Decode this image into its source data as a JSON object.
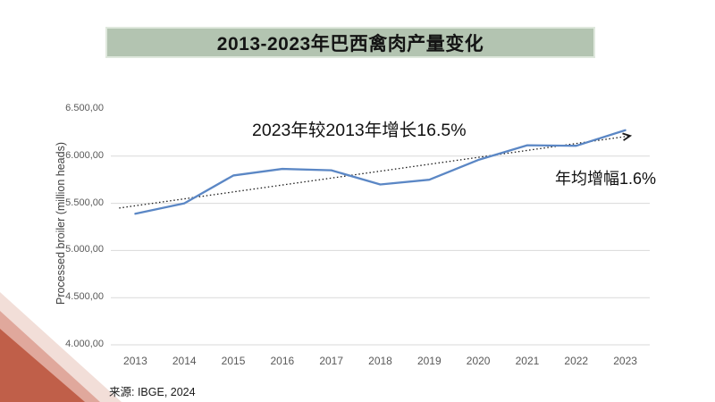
{
  "title": {
    "text": "2013-2023年巴西禽肉产量变化"
  },
  "annotations": {
    "growth_total": "2023年较2013年增长16.5%",
    "growth_annual": "年均增幅1.6%"
  },
  "source": {
    "text": "来源: IBGE, 2024"
  },
  "colors": {
    "banner_bg": "#b3c4b1",
    "banner_border": "#dfe8dd",
    "series_line": "#5b87c5",
    "trendline": "#1a1a1a",
    "gridline": "#d9d9d9",
    "tick_text": "#595959",
    "axis_label_text": "#404040",
    "corner_triangles": [
      "#f2ded8",
      "#e0a89c",
      "#c05f49"
    ]
  },
  "chart_data": {
    "type": "line",
    "title": "2013-2023年巴西禽肉产量变化",
    "categories": [
      "2013",
      "2014",
      "2015",
      "2016",
      "2017",
      "2018",
      "2019",
      "2020",
      "2021",
      "2022",
      "2023"
    ],
    "series": [
      {
        "name": "Processed broiler (million heads)",
        "values": [
          5390,
          5500,
          5795,
          5865,
          5850,
          5700,
          5750,
          5960,
          6115,
          6110,
          6275
        ]
      }
    ],
    "xlabel": "",
    "ylabel": "Processed broiler (million heads)",
    "ylim": [
      4000,
      6500
    ],
    "y_ticks": [
      {
        "value": 6500,
        "label": "6.500,00",
        "gridline": false
      },
      {
        "value": 6000,
        "label": "6.000,00",
        "gridline": true
      },
      {
        "value": 5500,
        "label": "5.500,00",
        "gridline": true
      },
      {
        "value": 5000,
        "label": "5.000,00",
        "gridline": true
      },
      {
        "value": 4500,
        "label": "4.500,00",
        "gridline": true
      },
      {
        "value": 4000,
        "label": "4.000,00",
        "gridline": true
      }
    ],
    "legend": "none",
    "grid": "horizontal",
    "trendline": {
      "type": "linear",
      "dotted": true,
      "arrow": true,
      "start_index": -0.33,
      "start_value": 5450,
      "end_index": 10.1,
      "end_value": 6215
    }
  }
}
